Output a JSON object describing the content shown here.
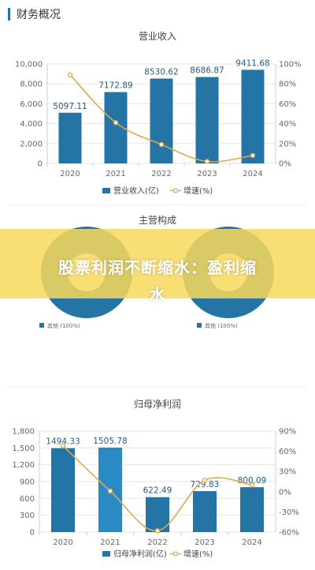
{
  "section": {
    "title": "财务概况"
  },
  "colors": {
    "bar": "#2474a6",
    "bar_highlight": "#2a8bc4",
    "line": "#e0a84c",
    "grid": "#e6e6e6",
    "axis_text": "#666666"
  },
  "banner": {
    "line1": "股票利润不断缩水：盈利缩",
    "line2": "水"
  },
  "chart_data": [
    {
      "type": "bar",
      "title": "营业收入",
      "categories": [
        "2020",
        "2021",
        "2022",
        "2023",
        "2024"
      ],
      "series": [
        {
          "name": "营业收入(亿)",
          "values": [
            5097.11,
            7172.89,
            8530.62,
            8686.87,
            9411.68
          ],
          "value_labels": [
            "5097.11",
            "7172.89",
            "8530.62",
            "8686.87",
            "9411.68"
          ]
        },
        {
          "name": "增速(%)",
          "type": "line",
          "axis": "right",
          "values": [
            89,
            41,
            19,
            2,
            8
          ]
        }
      ],
      "ylim": [
        0,
        10000
      ],
      "yticks": [
        "0",
        "2,000",
        "4,000",
        "6,000",
        "8,000",
        "10,000"
      ],
      "y2lim": [
        0,
        100
      ],
      "y2ticks": [
        "0%",
        "20%",
        "40%",
        "60%",
        "80%",
        "100%"
      ],
      "legend": "bottom"
    },
    {
      "type": "pie",
      "title": "主营构成",
      "legend_left": "其他 (100%)",
      "legend_right": "其他 (100%)"
    },
    {
      "type": "bar",
      "title": "归母净利润",
      "categories": [
        "2020",
        "2021",
        "2022",
        "2023",
        "2024"
      ],
      "series": [
        {
          "name": "归母净利润(亿)",
          "values": [
            1494.33,
            1505.78,
            622.49,
            729.83,
            800.09
          ],
          "value_labels": [
            "1494.33",
            "1505.78",
            "622.49",
            "729.83",
            "800.09"
          ]
        },
        {
          "name": "增速(%)",
          "type": "line",
          "axis": "right",
          "values": [
            68,
            1,
            -58,
            17,
            10
          ]
        }
      ],
      "ylim": [
        0,
        1800
      ],
      "yticks": [
        "0",
        "300",
        "600",
        "900",
        "1,200",
        "1,500",
        "1,800"
      ],
      "y2lim": [
        -60,
        90
      ],
      "y2ticks": [
        "-60%",
        "-30%",
        "0%",
        "30%",
        "60%",
        "90%"
      ],
      "legend": "bottom"
    }
  ]
}
